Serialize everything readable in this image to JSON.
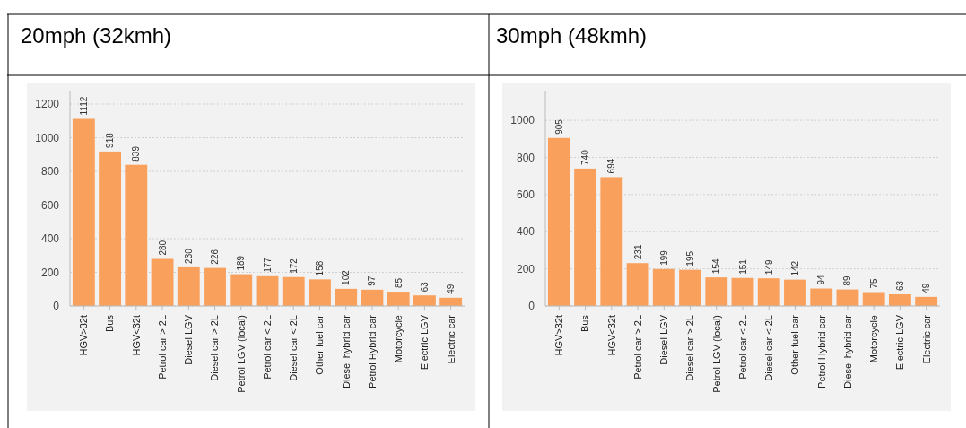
{
  "chart_data": [
    {
      "type": "bar",
      "title": "20mph (32kmh)",
      "categories": [
        "HGV>32t",
        "Bus",
        "HGV<32t",
        "Petrol car > 2L",
        "Diesel LGV",
        "Diesel car > 2L",
        "Petrol LGV (local)",
        "Petrol car < 2L",
        "Diesel car < 2L",
        "Other fuel car",
        "Diesel hybrid car",
        "Petrol Hybrid car",
        "Motorcycle",
        "Electric LGV",
        "Electric car"
      ],
      "values": [
        1112,
        918,
        839,
        280,
        230,
        226,
        189,
        177,
        172,
        158,
        102,
        97,
        85,
        63,
        49
      ],
      "color": "#f9a05c",
      "ylim": [
        0,
        1280
      ],
      "yticks": [
        0,
        200,
        400,
        600,
        800,
        1000,
        1200
      ],
      "grid": "y",
      "data_labels": true
    },
    {
      "type": "bar",
      "title": "30mph (48kmh)",
      "categories": [
        "HGV>32t",
        "Bus",
        "HGV<32t",
        "Petrol car > 2L",
        "Diesel LGV",
        "Diesel car > 2L",
        "Petrol LGV (local)",
        "Petrol car < 2L",
        "Diesel car < 2L",
        "Other fuel car",
        "Petrol Hybrid car",
        "Diesel hybrid car",
        "Motorcycle",
        "Electric LGV",
        "Electric car"
      ],
      "values": [
        905,
        740,
        694,
        231,
        199,
        195,
        154,
        151,
        149,
        142,
        94,
        89,
        75,
        63,
        49
      ],
      "color": "#f9a05c",
      "ylim": [
        0,
        1160
      ],
      "yticks": [
        0,
        200,
        400,
        600,
        800,
        1000
      ],
      "grid": "y",
      "data_labels": true
    }
  ]
}
